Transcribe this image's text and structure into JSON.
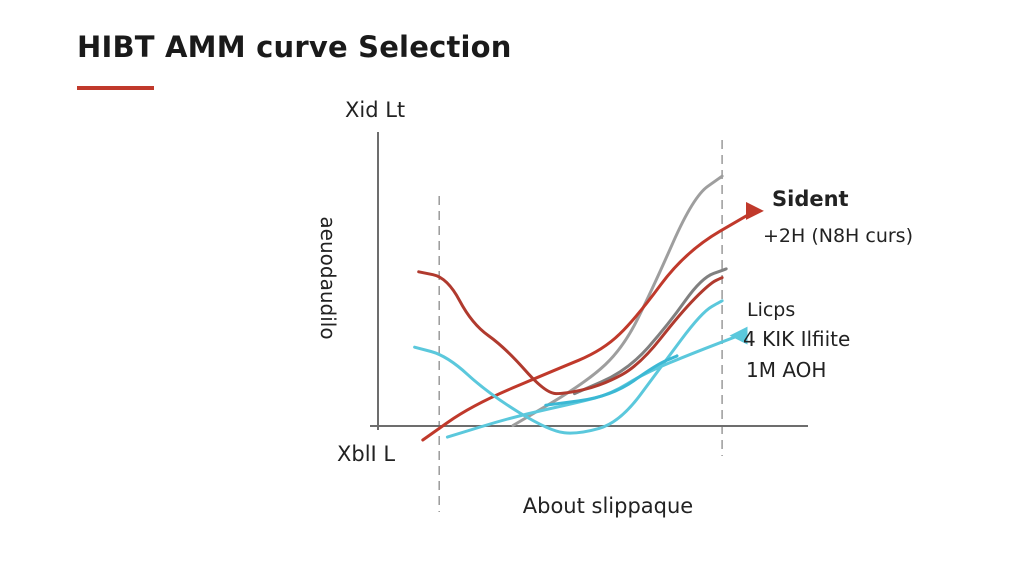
{
  "header": {
    "title": "HIBT AMM curve Selection",
    "accent_color": "#c0392b"
  },
  "chart_data": {
    "type": "line",
    "title": "HIBT AMM curve Selection",
    "xlabel": "About slippaque",
    "ylabel": "aeuodaudilo",
    "y_axis_top_label": "Xid Lt",
    "origin_label": "XblI L",
    "annotations": [
      {
        "text": "Sident",
        "bold": true
      },
      {
        "text": "+2H (N8H curs)",
        "bold": false
      },
      {
        "text": "Licps",
        "bold": false
      },
      {
        "text": "4 KIK Ilfiite",
        "bold": false
      },
      {
        "text": "1M AOH",
        "bold": false
      }
    ],
    "xlim": [
      0,
      10
    ],
    "ylim": [
      0,
      10
    ],
    "grid": false,
    "reference_lines_x": [
      1.2,
      8.1
    ],
    "series": [
      {
        "color": "#9e9e9e",
        "arrow": false,
        "points": [
          [
            3.0,
            0.5
          ],
          [
            4.8,
            2.0
          ],
          [
            5.7,
            3.2
          ],
          [
            6.4,
            5.2
          ],
          [
            7.4,
            8.4
          ],
          [
            8.1,
            9.1
          ]
        ]
      },
      {
        "color": "#808080",
        "arrow": false,
        "points": [
          [
            4.5,
            1.6
          ],
          [
            5.8,
            2.4
          ],
          [
            6.8,
            4.0
          ],
          [
            7.6,
            5.6
          ],
          [
            8.2,
            5.9
          ]
        ]
      },
      {
        "color": "#c0392b",
        "arrow": true,
        "points": [
          [
            0.8,
            0.0
          ],
          [
            2.0,
            1.2
          ],
          [
            4.0,
            2.4
          ],
          [
            5.2,
            3.1
          ],
          [
            6.0,
            4.2
          ],
          [
            7.2,
            6.5
          ],
          [
            8.9,
            7.9
          ]
        ]
      },
      {
        "color": "#b03a2e",
        "arrow": false,
        "points": [
          [
            0.7,
            5.8
          ],
          [
            1.4,
            5.6
          ],
          [
            2.0,
            4.0
          ],
          [
            2.8,
            3.2
          ],
          [
            3.8,
            1.6
          ],
          [
            4.3,
            1.6
          ],
          [
            5.2,
            1.9
          ],
          [
            6.1,
            2.6
          ],
          [
            7.1,
            4.4
          ],
          [
            7.8,
            5.4
          ],
          [
            8.1,
            5.6
          ]
        ]
      },
      {
        "color": "#5bc8dc",
        "arrow": false,
        "points": [
          [
            0.6,
            3.2
          ],
          [
            1.4,
            2.9
          ],
          [
            2.4,
            1.6
          ],
          [
            3.9,
            0.3
          ],
          [
            4.6,
            0.2
          ],
          [
            5.6,
            0.6
          ],
          [
            6.6,
            2.5
          ],
          [
            7.6,
            4.4
          ],
          [
            8.1,
            4.8
          ]
        ]
      },
      {
        "color": "#5bc8dc",
        "arrow": true,
        "points": [
          [
            1.4,
            0.1
          ],
          [
            3.0,
            0.8
          ],
          [
            4.6,
            1.3
          ],
          [
            5.4,
            1.6
          ],
          [
            6.2,
            2.3
          ],
          [
            7.4,
            3.0
          ],
          [
            8.5,
            3.6
          ]
        ]
      },
      {
        "color": "#3bb8d4",
        "arrow": false,
        "points": [
          [
            3.8,
            1.2
          ],
          [
            5.4,
            1.5
          ],
          [
            6.5,
            2.6
          ],
          [
            7.0,
            2.9
          ]
        ]
      }
    ]
  }
}
